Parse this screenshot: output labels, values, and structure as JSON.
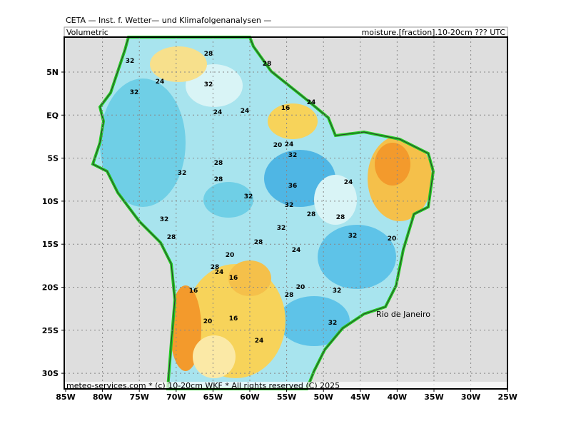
{
  "header": {
    "title": "CETA — Inst. f. Wetter— und Klimafolgenanalysen —",
    "left": "Volumetric",
    "right": "moisture.[fraction].10-20cm ??? UTC"
  },
  "map": {
    "lat_labels": [
      "5N",
      "EQ",
      "5S",
      "10S",
      "15S",
      "20S",
      "25S",
      "30S"
    ],
    "lon_labels": [
      "85W",
      "80W",
      "75W",
      "70W",
      "65W",
      "60W",
      "55W",
      "50W",
      "45W",
      "40W",
      "35W",
      "30W",
      "25W"
    ],
    "place": "Rio de Janeiro",
    "contour_labels": [
      "32",
      "28",
      "24",
      "32",
      "32",
      "28",
      "24",
      "24",
      "16",
      "24",
      "20",
      "24",
      "32",
      "28",
      "32",
      "28",
      "36",
      "24",
      "32",
      "32",
      "28",
      "28",
      "32",
      "32",
      "32",
      "28",
      "20",
      "28",
      "24",
      "20",
      "28",
      "24",
      "16",
      "16",
      "20",
      "28",
      "32",
      "20",
      "16",
      "32",
      "24"
    ],
    "footer": "meteo-services.com * (c) 10-20cm  WKF * All rights reserved (C) 2025"
  }
}
